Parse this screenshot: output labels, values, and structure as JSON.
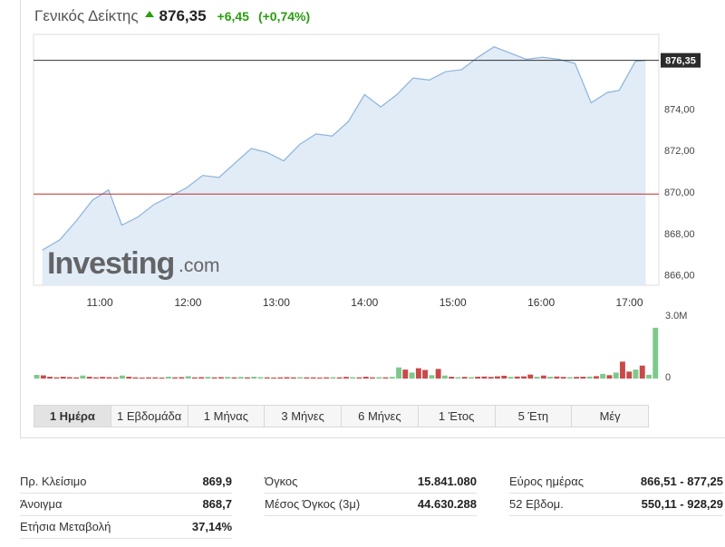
{
  "header": {
    "name": "Γενικός Δείκτης",
    "price": "876,35",
    "change": "+6,45",
    "change_pct": "(+0,74%)",
    "direction_icon": "up-arrow-icon",
    "up_color": "#2a9d0f"
  },
  "chart_data": {
    "type": "area",
    "x": [
      "10:21",
      "10:33",
      "10:44",
      "10:55",
      "11:06",
      "11:15",
      "11:26",
      "11:37",
      "11:48",
      "11:59",
      "12:10",
      "12:21",
      "12:32",
      "12:43",
      "12:54",
      "13:05",
      "13:16",
      "13:27",
      "13:38",
      "13:49",
      "14:00",
      "14:11",
      "14:22",
      "14:33",
      "14:44",
      "14:55",
      "15:06",
      "15:17",
      "15:28",
      "15:39",
      "15:50",
      "16:01",
      "16:12",
      "16:23",
      "16:34",
      "16:45",
      "16:53",
      "17:04",
      "17:11"
    ],
    "values": [
      867.2,
      867.7,
      868.6,
      869.6,
      870.1,
      868.4,
      868.8,
      869.4,
      869.8,
      870.2,
      870.8,
      870.7,
      871.4,
      872.1,
      871.9,
      871.5,
      872.3,
      872.8,
      872.7,
      873.4,
      874.7,
      874.1,
      874.7,
      875.5,
      875.4,
      875.8,
      875.9,
      876.5,
      877.0,
      876.7,
      876.4,
      876.5,
      876.4,
      876.2,
      874.3,
      874.8,
      874.9,
      876.3,
      876.35
    ],
    "ylim": [
      865.5,
      877.6
    ],
    "yticks": [
      866,
      868,
      870,
      872,
      874
    ],
    "ytick_labels": [
      "866,00",
      "868,00",
      "870,00",
      "872,00",
      "874,00"
    ],
    "xtick_labels": [
      "11:00",
      "12:00",
      "13:00",
      "14:00",
      "15:00",
      "16:00",
      "17:00"
    ],
    "last_label": "876,35",
    "last_value": 876.35,
    "prev_close": 869.9,
    "volume": {
      "max_label": "3.0M",
      "zero_label": "0",
      "max": 3000000,
      "values": [
        180000,
        160000,
        90000,
        60000,
        90000,
        70000,
        60000,
        150000,
        90000,
        60000,
        80000,
        70000,
        60000,
        150000,
        90000,
        60000,
        50000,
        60000,
        60000,
        50000,
        90000,
        60000,
        70000,
        120000,
        60000,
        70000,
        80000,
        60000,
        70000,
        80000,
        60000,
        80000,
        60000,
        90000,
        70000,
        60000,
        50000,
        60000,
        70000,
        60000,
        70000,
        60000,
        60000,
        50000,
        60000,
        70000,
        60000,
        80000,
        70000,
        60000,
        90000,
        60000,
        70000,
        60000,
        80000,
        560000,
        450000,
        300000,
        520000,
        430000,
        170000,
        480000,
        150000,
        90000,
        70000,
        80000,
        70000,
        90000,
        100000,
        80000,
        110000,
        140000,
        80000,
        100000,
        110000,
        200000,
        90000,
        150000,
        90000,
        100000,
        80000,
        70000,
        80000,
        90000,
        100000,
        120000,
        230000,
        170000,
        300000,
        850000,
        350000,
        450000,
        650000,
        190000,
        2550000
      ],
      "up": [
        1,
        0,
        0,
        0,
        0,
        0,
        0,
        1,
        0,
        0,
        0,
        0,
        0,
        1,
        0,
        0,
        0,
        0,
        0,
        0,
        1,
        0,
        0,
        1,
        0,
        0,
        1,
        0,
        0,
        1,
        0,
        1,
        0,
        1,
        1,
        0,
        0,
        0,
        0,
        0,
        1,
        0,
        0,
        0,
        0,
        1,
        0,
        0,
        1,
        0,
        0,
        0,
        1,
        0,
        1,
        1,
        0,
        1,
        0,
        0,
        1,
        0,
        1,
        0,
        1,
        0,
        1,
        0,
        0,
        0,
        0,
        0,
        1,
        0,
        0,
        0,
        1,
        0,
        1,
        0,
        0,
        1,
        0,
        0,
        1,
        0,
        1,
        0,
        1,
        0,
        0,
        1,
        0,
        1,
        1
      ],
      "up_color": "#7dc98b",
      "down_color": "#c94a4a"
    },
    "colors": {
      "line": "#8bb3dc",
      "fill": "#e1ecf7",
      "prev_close": "#c0302b",
      "last_line": "#333333"
    },
    "watermark": "Investing",
    "watermark_suffix": ".com"
  },
  "tabs": [
    {
      "label": "1 Ημέρα",
      "active": true
    },
    {
      "label": "1 Εβδομάδα"
    },
    {
      "label": "1 Μήνας"
    },
    {
      "label": "3 Μήνες"
    },
    {
      "label": "6 Μήνες"
    },
    {
      "label": "1 Έτος"
    },
    {
      "label": "5 Έτη"
    },
    {
      "label": "Μέγ"
    }
  ],
  "stats": {
    "col1": [
      {
        "label": "Πρ. Κλείσιμο",
        "value": "869,9"
      },
      {
        "label": "Άνοιγμα",
        "value": "868,7"
      },
      {
        "label": "Ετήσια Μεταβολή",
        "value": "37,14%"
      }
    ],
    "col2": [
      {
        "label": "Όγκος",
        "value": "15.841.080"
      },
      {
        "label": "Μέσος Όγκος (3μ)",
        "value": "44.630.288"
      }
    ],
    "col3": [
      {
        "label": "Εύρος ημέρας",
        "value": "866,51 - 877,25"
      },
      {
        "label": "52 Εβδομ.",
        "value": "550,11 - 928,29"
      }
    ]
  }
}
